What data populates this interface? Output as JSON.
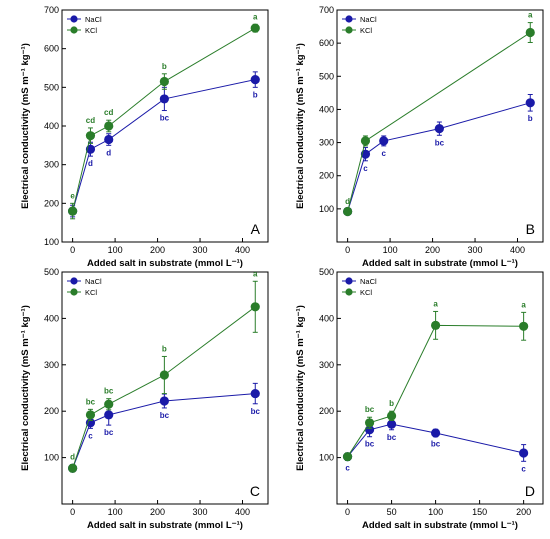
{
  "colors": {
    "nacl": "#1a1aa8",
    "kcl": "#2a7d2a",
    "axis": "#000000"
  },
  "chart_data": [
    {
      "panel": "A",
      "type": "line",
      "xlabel": "Added salt in substrate (mmol L⁻¹)",
      "ylabel": "Electrical conductivity (mS m⁻¹ kg⁻¹)",
      "xlim": [
        -25,
        460
      ],
      "ylim": [
        100,
        700
      ],
      "xticks": [
        0,
        100,
        200,
        300,
        400
      ],
      "yticks": [
        100,
        200,
        300,
        400,
        500,
        600,
        700
      ],
      "legend": "top-left",
      "series": [
        {
          "name": "NaCl",
          "color": "#1a1aa8",
          "x": [
            0,
            42,
            85,
            216,
            430
          ],
          "y": [
            180,
            340,
            365,
            470,
            520
          ],
          "err": [
            15,
            18,
            15,
            30,
            20
          ],
          "labels": [
            "",
            "d",
            "d",
            "bc",
            "b"
          ]
        },
        {
          "name": "KCl",
          "color": "#2a7d2a",
          "x": [
            0,
            42,
            85,
            216,
            430
          ],
          "y": [
            180,
            375,
            400,
            515,
            653
          ],
          "err": [
            20,
            20,
            15,
            20,
            10
          ],
          "labels": [
            "e",
            "cd",
            "cd",
            "b",
            "a"
          ]
        }
      ]
    },
    {
      "panel": "B",
      "type": "line",
      "xlabel": "Added salt in substrate (mmol L⁻¹)",
      "ylabel": "Electrical conductivity (mS m⁻¹ kg⁻¹)",
      "xlim": [
        -25,
        460
      ],
      "ylim": [
        0,
        700
      ],
      "xticks": [
        0,
        100,
        200,
        300,
        400
      ],
      "yticks": [
        100,
        200,
        300,
        400,
        500,
        600,
        700
      ],
      "legend": "top-left",
      "series": [
        {
          "name": "NaCl",
          "color": "#1a1aa8",
          "x": [
            0,
            42,
            85,
            216,
            430
          ],
          "y": [
            92,
            265,
            305,
            342,
            420
          ],
          "err": [
            8,
            20,
            15,
            20,
            25
          ],
          "labels": [
            "",
            "c",
            "c",
            "bc",
            "b"
          ]
        },
        {
          "name": "KCl",
          "color": "#2a7d2a",
          "x": [
            0,
            42,
            430
          ],
          "y": [
            92,
            305,
            632
          ],
          "err": [
            8,
            15,
            30
          ],
          "labels": [
            "d",
            "",
            "a"
          ]
        }
      ]
    },
    {
      "panel": "C",
      "type": "line",
      "xlabel": "Added salt in substrate (mmol L⁻¹)",
      "ylabel": "Electrical conductivity (mS m⁻¹ kg⁻¹)",
      "xlim": [
        -25,
        460
      ],
      "ylim": [
        0,
        500
      ],
      "xticks": [
        0,
        100,
        200,
        300,
        400
      ],
      "yticks": [
        100,
        200,
        300,
        400,
        500
      ],
      "legend": "top-left",
      "series": [
        {
          "name": "NaCl",
          "color": "#1a1aa8",
          "x": [
            0,
            42,
            85,
            216,
            430
          ],
          "y": [
            77,
            175,
            192,
            222,
            238
          ],
          "err": [
            5,
            12,
            22,
            15,
            22
          ],
          "labels": [
            "",
            "c",
            "bc",
            "bc",
            "bc"
          ]
        },
        {
          "name": "KCl",
          "color": "#2a7d2a",
          "x": [
            0,
            42,
            85,
            216,
            430
          ],
          "y": [
            77,
            192,
            215,
            278,
            425
          ],
          "err": [
            8,
            12,
            12,
            40,
            55
          ],
          "labels": [
            "d",
            "bc",
            "bc",
            "b",
            "a"
          ]
        }
      ]
    },
    {
      "panel": "D",
      "type": "line",
      "xlabel": "Added salt in substrate (mmol L⁻¹)",
      "ylabel": "Electrical conductivity (mS m⁻¹ kg⁻¹)",
      "xlim": [
        -12,
        222
      ],
      "ylim": [
        0,
        500
      ],
      "xticks": [
        0,
        50,
        100,
        150,
        200
      ],
      "yticks": [
        100,
        200,
        300,
        400,
        500
      ],
      "legend": "top-left",
      "series": [
        {
          "name": "NaCl",
          "color": "#1a1aa8",
          "x": [
            0,
            25,
            50,
            100,
            200
          ],
          "y": [
            102,
            160,
            172,
            153,
            110
          ],
          "err": [
            8,
            15,
            12,
            8,
            18
          ],
          "labels": [
            "c",
            "bc",
            "bc",
            "bc",
            "c"
          ]
        },
        {
          "name": "KCl",
          "color": "#2a7d2a",
          "x": [
            0,
            25,
            50,
            100,
            200
          ],
          "y": [
            102,
            175,
            190,
            385,
            383
          ],
          "err": [
            8,
            12,
            10,
            30,
            30
          ],
          "labels": [
            "",
            "bc",
            "b",
            "a",
            "a"
          ]
        }
      ]
    }
  ]
}
